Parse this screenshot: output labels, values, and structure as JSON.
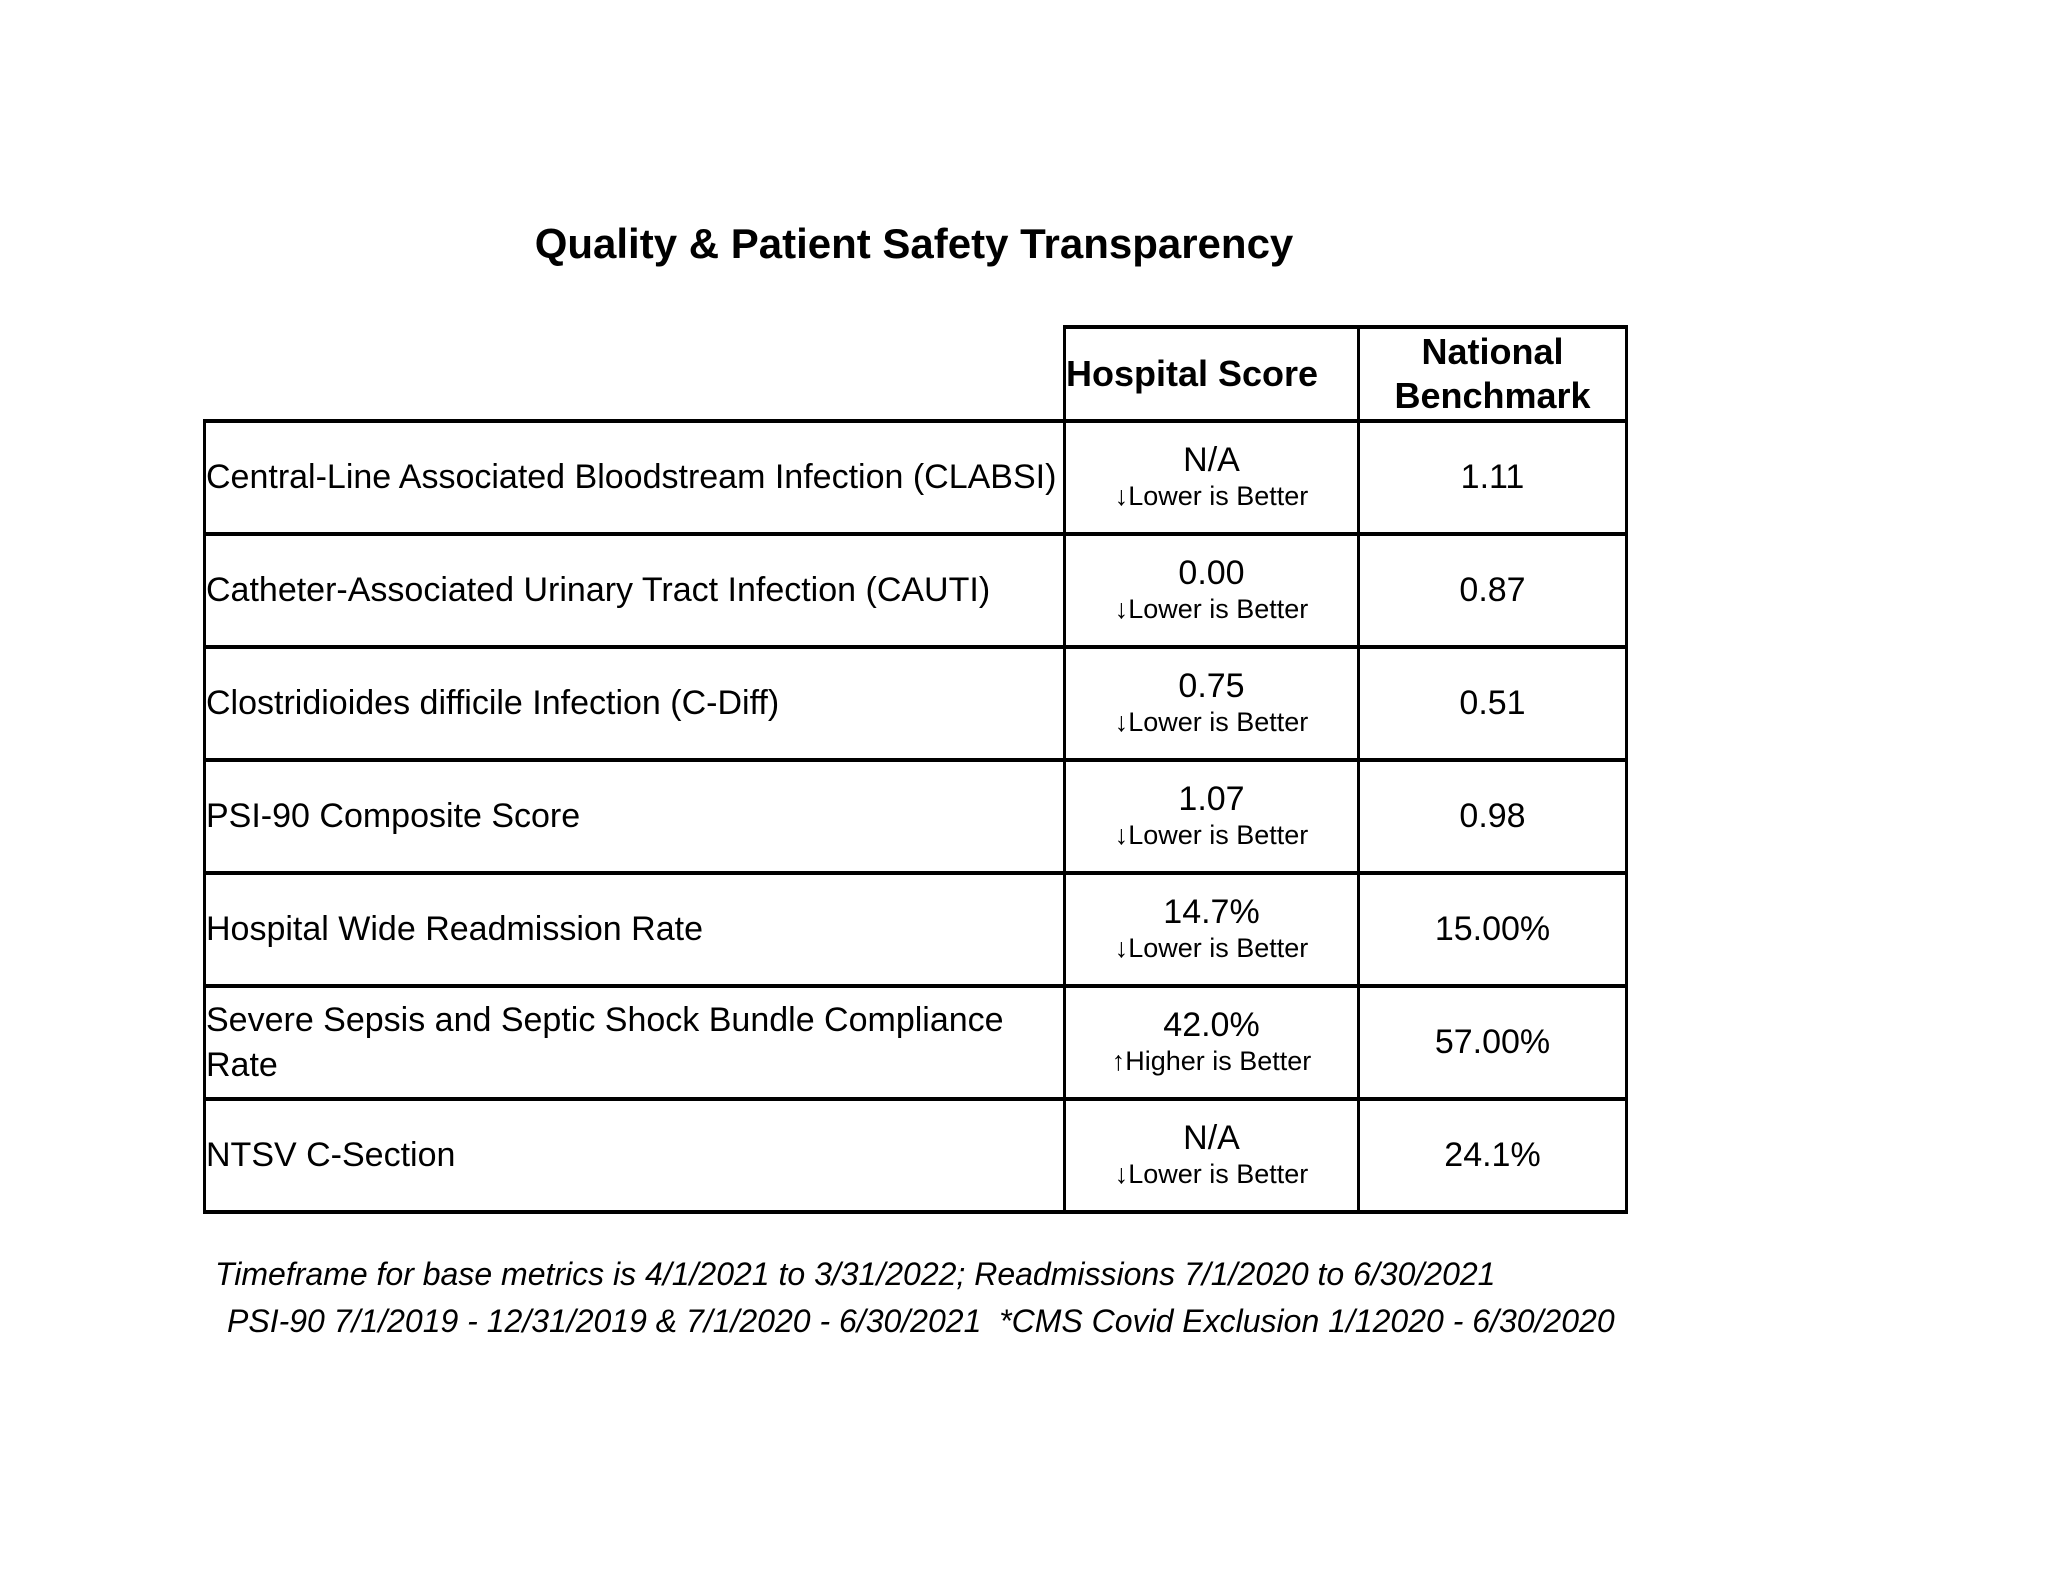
{
  "page": {
    "title": "Quality & Patient Safety Transparency",
    "background_color": "#ffffff",
    "text_color": "#000000",
    "border_color": "#000000"
  },
  "table": {
    "columns": {
      "metric": "",
      "hospital_score": "Hospital Score",
      "national_benchmark": "National Benchmark"
    },
    "rows": [
      {
        "label": "Central-Line Associated Bloodstream Infection (CLABSI)",
        "score": "N/A",
        "direction_arrow": "↓",
        "direction_label": "Lower is Better",
        "benchmark": "1.11"
      },
      {
        "label": "Catheter-Associated Urinary Tract Infection (CAUTI)",
        "score": "0.00",
        "direction_arrow": "↓",
        "direction_label": "Lower is Better",
        "benchmark": "0.87"
      },
      {
        "label": "Clostridioides difficile Infection (C-Diff)",
        "score": "0.75",
        "direction_arrow": "↓",
        "direction_label": "Lower is Better",
        "benchmark": "0.51"
      },
      {
        "label": "PSI-90 Composite Score",
        "score": "1.07",
        "direction_arrow": "↓",
        "direction_label": "Lower is Better",
        "benchmark": "0.98"
      },
      {
        "label": "Hospital Wide Readmission Rate",
        "score": "14.7%",
        "direction_arrow": "↓",
        "direction_label": "Lower is Better",
        "benchmark": "15.00%"
      },
      {
        "label": "Severe Sepsis and Septic Shock Bundle Compliance Rate",
        "score": "42.0%",
        "direction_arrow": "↑",
        "direction_label": "Higher is Better",
        "benchmark": "57.00%"
      },
      {
        "label": "NTSV C-Section",
        "score": "N/A",
        "direction_arrow": "↓",
        "direction_label": "Lower is Better",
        "benchmark": "24.1%"
      }
    ]
  },
  "footnotes": {
    "line1": "Timeframe for base metrics is 4/1/2021 to 3/31/2022; Readmissions 7/1/2020 to 6/30/2021",
    "line2": "PSI-90 7/1/2019 - 12/31/2019 & 7/1/2020 - 6/30/2021  *CMS Covid Exclusion 1/12020 - 6/30/2020"
  }
}
